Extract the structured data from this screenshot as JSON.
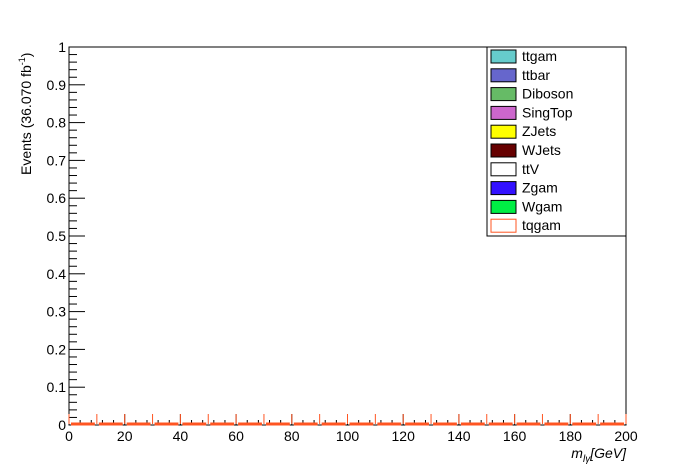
{
  "chart_data": {
    "type": "bar",
    "xlabel_main": "m",
    "xlabel_sub": "lγ",
    "xlabel_unit": "[GeV]",
    "ylabel_main": "Events (36.070 fb",
    "ylabel_sup": "-1",
    "ylabel_close": ")",
    "xlim": [
      0,
      200
    ],
    "ylim": [
      0,
      1
    ],
    "x_ticks": [
      0,
      20,
      40,
      60,
      80,
      100,
      120,
      140,
      160,
      180,
      200
    ],
    "x_tick_labels": [
      "0",
      "20",
      "40",
      "60",
      "80",
      "100",
      "120",
      "140",
      "160",
      "180",
      "200"
    ],
    "y_ticks": [
      0,
      0.1,
      0.2,
      0.3,
      0.4,
      0.5,
      0.6,
      0.7,
      0.8,
      0.9,
      1
    ],
    "y_tick_labels": [
      "0",
      "0.1",
      "0.2",
      "0.3",
      "0.4",
      "0.5",
      "0.6",
      "0.7",
      "0.8",
      "0.9",
      "1"
    ],
    "grid": false,
    "legend_position": "top-right",
    "bin_width": 10,
    "series": [
      {
        "name": "ttgam",
        "color": "#66cccc",
        "style": "filled",
        "values": [
          0,
          0,
          0,
          0,
          0,
          0,
          0,
          0,
          0,
          0,
          0,
          0,
          0,
          0,
          0,
          0,
          0,
          0,
          0,
          0
        ]
      },
      {
        "name": "ttbar",
        "color": "#6666cc",
        "style": "filled",
        "values": [
          0,
          0,
          0,
          0,
          0,
          0,
          0,
          0,
          0,
          0,
          0,
          0,
          0,
          0,
          0,
          0,
          0,
          0,
          0,
          0
        ]
      },
      {
        "name": "Diboson",
        "color": "#66bb66",
        "style": "filled",
        "values": [
          0,
          0,
          0,
          0,
          0,
          0,
          0,
          0,
          0,
          0,
          0,
          0,
          0,
          0,
          0,
          0,
          0,
          0,
          0,
          0
        ]
      },
      {
        "name": "SingTop",
        "color": "#cc66cc",
        "style": "filled",
        "values": [
          0,
          0,
          0,
          0,
          0,
          0,
          0,
          0,
          0,
          0,
          0,
          0,
          0,
          0,
          0,
          0,
          0,
          0,
          0,
          0
        ]
      },
      {
        "name": "ZJets",
        "color": "#ffff00",
        "style": "filled",
        "values": [
          0,
          0,
          0,
          0,
          0,
          0,
          0,
          0,
          0,
          0,
          0,
          0,
          0,
          0,
          0,
          0,
          0,
          0,
          0,
          0
        ]
      },
      {
        "name": "WJets",
        "color": "#660000",
        "style": "filled",
        "values": [
          0,
          0,
          0,
          0,
          0,
          0,
          0,
          0,
          0,
          0,
          0,
          0,
          0,
          0,
          0,
          0,
          0,
          0,
          0,
          0
        ]
      },
      {
        "name": "ttV",
        "color": "#ffffff",
        "style": "filled",
        "values": [
          0,
          0,
          0,
          0,
          0,
          0,
          0,
          0,
          0,
          0,
          0,
          0,
          0,
          0,
          0,
          0,
          0,
          0,
          0,
          0
        ]
      },
      {
        "name": "Zgam",
        "color": "#3311ff",
        "style": "filled",
        "values": [
          0,
          0,
          0,
          0,
          0,
          0,
          0,
          0,
          0,
          0,
          0,
          0,
          0,
          0,
          0,
          0,
          0,
          0,
          0,
          0
        ]
      },
      {
        "name": "Wgam",
        "color": "#00ee44",
        "style": "filled",
        "values": [
          0,
          0,
          0,
          0,
          0,
          0,
          0,
          0,
          0,
          0,
          0,
          0,
          0,
          0,
          0,
          0,
          0,
          0,
          0,
          0
        ]
      },
      {
        "name": "tqgam",
        "color": "#ff5522",
        "style": "dashed-line",
        "values": [
          0,
          0,
          0,
          0,
          0,
          0,
          0,
          0,
          0,
          0,
          0,
          0,
          0,
          0,
          0,
          0,
          0,
          0,
          0,
          0
        ]
      }
    ]
  }
}
